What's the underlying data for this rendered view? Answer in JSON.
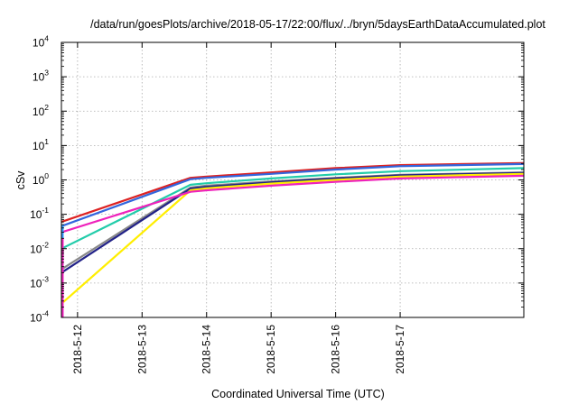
{
  "chart_data": {
    "type": "line",
    "title": "/data/run/goesPlots/archive/2018-05-17/22:00/flux/../bryn/5daysEarthDataAccumulated.plot",
    "xlabel": "Coordinated Universal Time (UTC)",
    "ylabel": "cSv",
    "y_scale": "log",
    "ylim": [
      0.0001,
      10000
    ],
    "y_ticks": [
      {
        "base": "10",
        "exp": "-4",
        "value": 0.0001
      },
      {
        "base": "10",
        "exp": "-3",
        "value": 0.001
      },
      {
        "base": "10",
        "exp": "-2",
        "value": 0.01
      },
      {
        "base": "10",
        "exp": "-1",
        "value": 0.1
      },
      {
        "base": "10",
        "exp": "0",
        "value": 1
      },
      {
        "base": "10",
        "exp": "1",
        "value": 10
      },
      {
        "base": "10",
        "exp": "2",
        "value": 100
      },
      {
        "base": "10",
        "exp": "3",
        "value": 1000
      },
      {
        "base": "10",
        "exp": "4",
        "value": 10000
      }
    ],
    "xlim": [
      "2018-05-11T18:00",
      "2018-05-18T22:00"
    ],
    "x_ticks": [
      "2018-5-12",
      "2018-5-13",
      "2018-5-14",
      "2018-5-15",
      "2018-5-16",
      "2018-5-17"
    ],
    "x_tick_dates": [
      "2018-05-12T00:00",
      "2018-05-13T00:00",
      "2018-05-14T00:00",
      "2018-05-15T00:00",
      "2018-05-16T00:00",
      "2018-05-17T00:00"
    ],
    "grid": true,
    "x": [
      "2018-05-11T18:00",
      "2018-05-13T18:00",
      "2018-05-14T00:00",
      "2018-05-15T00:00",
      "2018-05-16T00:00",
      "2018-05-17T00:00",
      "2018-05-18T22:00"
    ],
    "series": [
      {
        "color": "#dd2222",
        "values": [
          0.06,
          1.15,
          1.25,
          1.65,
          2.2,
          2.7,
          3.1
        ]
      },
      {
        "color": "#3366dd",
        "values": [
          0.045,
          1.05,
          1.15,
          1.5,
          2.0,
          2.5,
          2.9
        ]
      },
      {
        "color": "#22ccaa",
        "values": [
          0.01,
          0.72,
          0.8,
          1.1,
          1.45,
          1.8,
          2.2
        ]
      },
      {
        "color": "#888888",
        "values": [
          0.0025,
          0.6,
          0.68,
          0.9,
          1.15,
          1.4,
          1.65
        ]
      },
      {
        "color": "#222288",
        "values": [
          0.002,
          0.56,
          0.63,
          0.85,
          1.1,
          1.35,
          1.6
        ]
      },
      {
        "color": "#ffee00",
        "values": [
          0.00025,
          0.5,
          0.57,
          0.78,
          1.0,
          1.25,
          1.5
        ]
      },
      {
        "color": "#ee22bb",
        "values": [
          0.03,
          0.45,
          0.5,
          0.68,
          0.88,
          1.1,
          1.32
        ]
      }
    ],
    "initial_spikes": [
      {
        "color": "#3399ff",
        "from": 0.01,
        "to": 0.05
      },
      {
        "color": "#ee22bb",
        "from": 0.0001,
        "to": 0.02
      }
    ]
  }
}
